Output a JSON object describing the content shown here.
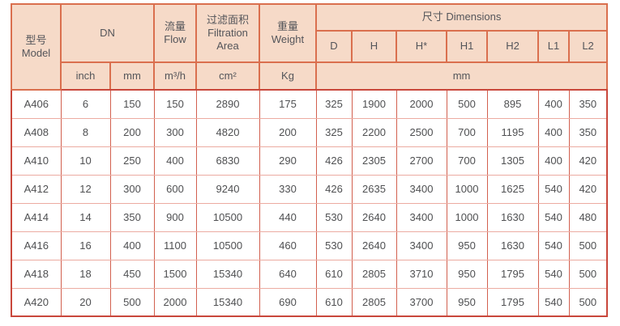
{
  "colors": {
    "page_bg": "#ffffff",
    "header_bg": "#f6dac8",
    "header_border": "#da6f4e",
    "outer_border": "#c9473b",
    "grid_vertical": "#d2604f",
    "grid_horizontal": "#ecaba1",
    "header_text": "#54555a",
    "cell_text": "#4f5052"
  },
  "table": {
    "header": {
      "model": {
        "cn": "型号",
        "en": "Model"
      },
      "dn": "DN",
      "flow": {
        "cn": "流量",
        "en": "Flow"
      },
      "filtration": {
        "cn": "过滤面积",
        "en": "Filtration Area"
      },
      "weight": {
        "cn": "重量",
        "en": "Weight"
      },
      "dimensions": {
        "cn": "尺寸",
        "en": "Dimensions"
      },
      "dim_cols": [
        "D",
        "H",
        "H*",
        "H1",
        "H2",
        "L1",
        "L2"
      ],
      "units": {
        "inch": "inch",
        "mm": "mm",
        "flow": "m³/h",
        "area": "cm²",
        "weight": "Kg",
        "dims": "mm"
      }
    },
    "rows": [
      {
        "model": "A406",
        "inch": "6",
        "mm": "150",
        "flow": "150",
        "area": "2890",
        "weight": "175",
        "dims": [
          "325",
          "1900",
          "2000",
          "500",
          "895",
          "400",
          "350"
        ]
      },
      {
        "model": "A408",
        "inch": "8",
        "mm": "200",
        "flow": "300",
        "area": "4820",
        "weight": "200",
        "dims": [
          "325",
          "2200",
          "2500",
          "700",
          "1195",
          "400",
          "350"
        ]
      },
      {
        "model": "A410",
        "inch": "10",
        "mm": "250",
        "flow": "400",
        "area": "6830",
        "weight": "290",
        "dims": [
          "426",
          "2305",
          "2700",
          "700",
          "1305",
          "400",
          "420"
        ]
      },
      {
        "model": "A412",
        "inch": "12",
        "mm": "300",
        "flow": "600",
        "area": "9240",
        "weight": "330",
        "dims": [
          "426",
          "2635",
          "3400",
          "1000",
          "1625",
          "540",
          "420"
        ]
      },
      {
        "model": "A414",
        "inch": "14",
        "mm": "350",
        "flow": "900",
        "area": "10500",
        "weight": "440",
        "dims": [
          "530",
          "2640",
          "3400",
          "1000",
          "1630",
          "540",
          "480"
        ]
      },
      {
        "model": "A416",
        "inch": "16",
        "mm": "400",
        "flow": "1100",
        "area": "10500",
        "weight": "460",
        "dims": [
          "530",
          "2640",
          "3400",
          "950",
          "1630",
          "540",
          "500"
        ]
      },
      {
        "model": "A418",
        "inch": "18",
        "mm": "450",
        "flow": "1500",
        "area": "15340",
        "weight": "640",
        "dims": [
          "610",
          "2805",
          "3710",
          "950",
          "1795",
          "540",
          "500"
        ]
      },
      {
        "model": "A420",
        "inch": "20",
        "mm": "500",
        "flow": "2000",
        "area": "15340",
        "weight": "690",
        "dims": [
          "610",
          "2805",
          "3700",
          "950",
          "1795",
          "540",
          "500"
        ]
      }
    ]
  },
  "chart_data": {
    "type": "table",
    "title": "尺寸 Dimensions specification table",
    "columns": [
      "型号 Model",
      "DN inch",
      "DN mm",
      "流量 Flow (m³/h)",
      "过滤面积 Filtration Area (cm²)",
      "重量 Weight (Kg)",
      "D (mm)",
      "H (mm)",
      "H* (mm)",
      "H1 (mm)",
      "H2 (mm)",
      "L1 (mm)",
      "L2 (mm)"
    ],
    "rows": [
      [
        "A406",
        "6",
        "150",
        "150",
        "2890",
        "175",
        "325",
        "1900",
        "2000",
        "500",
        "895",
        "400",
        "350"
      ],
      [
        "A408",
        "8",
        "200",
        "300",
        "4820",
        "200",
        "325",
        "2200",
        "2500",
        "700",
        "1195",
        "400",
        "350"
      ],
      [
        "A410",
        "10",
        "250",
        "400",
        "6830",
        "290",
        "426",
        "2305",
        "2700",
        "700",
        "1305",
        "400",
        "420"
      ],
      [
        "A412",
        "12",
        "300",
        "600",
        "9240",
        "330",
        "426",
        "2635",
        "3400",
        "1000",
        "1625",
        "540",
        "420"
      ],
      [
        "A414",
        "14",
        "350",
        "900",
        "10500",
        "440",
        "530",
        "2640",
        "3400",
        "1000",
        "1630",
        "540",
        "480"
      ],
      [
        "A416",
        "16",
        "400",
        "1100",
        "10500",
        "460",
        "530",
        "2640",
        "3400",
        "950",
        "1630",
        "540",
        "500"
      ],
      [
        "A418",
        "18",
        "450",
        "1500",
        "15340",
        "640",
        "610",
        "2805",
        "3710",
        "950",
        "1795",
        "540",
        "500"
      ],
      [
        "A420",
        "20",
        "500",
        "2000",
        "15340",
        "690",
        "610",
        "2805",
        "3700",
        "950",
        "1795",
        "540",
        "500"
      ]
    ]
  }
}
